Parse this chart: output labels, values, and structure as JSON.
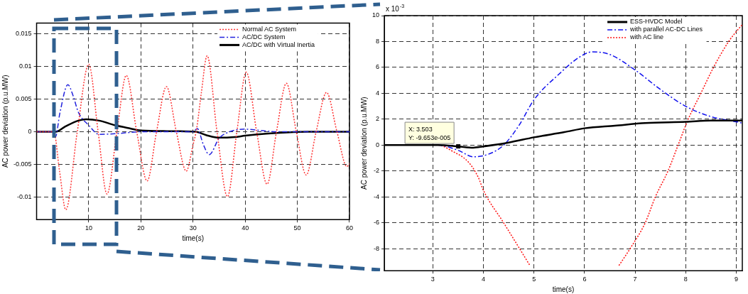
{
  "chart_data": [
    {
      "type": "line",
      "xlabel": "time(s)",
      "ylabel": "AC power deviation (p.u.MW)",
      "xlim": [
        0,
        60
      ],
      "ylim": [
        -0.0134,
        0.0166
      ],
      "xticks": [
        10,
        20,
        30,
        40,
        50,
        60
      ],
      "yticks": [
        -0.01,
        -0.005,
        0,
        0.005,
        0.01,
        0.015
      ],
      "grid": true,
      "legend": "top right",
      "series": [
        {
          "name": "Normal AC System",
          "color": "#ff3333",
          "line_style": "dotted",
          "x": [
            0,
            3.3,
            4.4,
            5.6,
            7.8,
            10,
            11.8,
            13.5,
            15.4,
            17.2,
            19.2,
            21.2,
            23,
            24.9,
            26.8,
            28.7,
            30,
            30.7,
            31.6,
            32.7,
            34.6,
            36.6,
            38.4,
            40.2,
            42.2,
            44.2,
            46,
            47.9,
            49.8,
            51.7,
            53.6,
            55.6,
            57.6,
            59.5,
            60
          ],
          "values": [
            0,
            0,
            -0.006,
            -0.0119,
            0,
            0.0103,
            0,
            -0.0095,
            0,
            0.0086,
            0,
            -0.0075,
            0,
            0.0069,
            0,
            -0.006,
            -0.002,
            0.0005,
            0.006,
            0.0116,
            0,
            -0.0099,
            0,
            0.0091,
            0,
            -0.008,
            0,
            0.0074,
            0,
            -0.0066,
            0,
            0.006,
            0,
            -0.0053,
            -0.0049
          ]
        },
        {
          "name": "AC/DC System",
          "color": "#2222dd",
          "line_style": "dashed",
          "x": [
            0,
            3.3,
            3.6,
            4.5,
            6,
            7,
            8,
            10,
            12,
            15,
            20,
            30,
            30.8,
            32,
            33.1,
            35,
            37,
            40,
            43,
            46,
            60
          ],
          "values": [
            0,
            0,
            -0.0008,
            0.003,
            0.0072,
            0.0055,
            0.003,
            0.001,
            -0.0004,
            -0.0003,
            0,
            0,
            0.0005,
            -0.002,
            -0.0035,
            -0.001,
            0,
            0.0004,
            0.0002,
            0,
            0
          ]
        },
        {
          "name": "AC/DC with Virtual Inertia",
          "color": "#000000",
          "line_style": "solid",
          "x": [
            0,
            3.7,
            5.5,
            8,
            9.5,
            12,
            15,
            18,
            20,
            25,
            30.5,
            32.5,
            35,
            38,
            40,
            44,
            48,
            52,
            60
          ],
          "values": [
            0,
            0,
            0.0008,
            0.0017,
            0.0019,
            0.0017,
            0.001,
            0.0005,
            0.0002,
            0.0001,
            0,
            -0.0005,
            -0.0009,
            -0.0008,
            -0.0006,
            -0.0003,
            -0.0001,
            0,
            0
          ]
        }
      ]
    },
    {
      "type": "line",
      "xlabel": "time(s)",
      "ylabel": "AC power deviation (p.u.MW)",
      "xlim": [
        2.04,
        9.12
      ],
      "ylim": [
        -9.7,
        10
      ],
      "xticks": [
        3,
        4,
        5,
        6,
        7,
        8,
        9
      ],
      "yticks": [
        -8,
        -6,
        -4,
        -2,
        0,
        2,
        4,
        6,
        8,
        10
      ],
      "grid": true,
      "legend": "top right",
      "annotations": [
        "x 10$^{-3}$",
        {
          "text": "X: 3.503\nY: -9.653e-005",
          "x": 3.503,
          "y": -0.09653
        }
      ],
      "series": [
        {
          "name": "ESS-HVDC Model",
          "color": "#000000",
          "line_style": "solid",
          "x": [
            2.04,
            3.1,
            3.5,
            3.8,
            4,
            4.5,
            5,
            5.6,
            6,
            6.6,
            7.2,
            8,
            8.5,
            9.12
          ],
          "values": [
            0,
            0,
            -0.1,
            -0.2,
            -0.1,
            0.2,
            0.6,
            1,
            1.3,
            1.5,
            1.7,
            1.8,
            1.9,
            1.9
          ]
        },
        {
          "name": "with parallel AC-DC Lines",
          "color": "#1111ee",
          "line_style": "dashed",
          "x": [
            2.04,
            3.1,
            3.5,
            3.8,
            4.1,
            4.4,
            4.7,
            5,
            5.5,
            5.9,
            6.15,
            6.5,
            7,
            7.5,
            8,
            8.5,
            9,
            9.12
          ],
          "values": [
            0,
            0,
            -0.4,
            -0.9,
            -0.7,
            0,
            1.5,
            3.5,
            5.5,
            6.8,
            7.2,
            7,
            5.8,
            4.3,
            3,
            2.2,
            1.8,
            1.7
          ]
        },
        {
          "name": "with AC line",
          "color": "#ff1111",
          "line_style": "dotted",
          "x": [
            2.04,
            3.1,
            3.4,
            3.7,
            3.9,
            4,
            4.4,
            4.92,
            5.8,
            6.68,
            6.9,
            7.2,
            7.4,
            7.65,
            7.85,
            8.05,
            8.3,
            8.55,
            8.85,
            9.05,
            9.12
          ],
          "values": [
            0,
            0,
            -0.5,
            -1.3,
            -2.5,
            -3.5,
            -6,
            -9.3,
            null,
            -9.3,
            -8,
            -6,
            -4,
            -2,
            0,
            2,
            4,
            6,
            8,
            9,
            9.3
          ]
        }
      ]
    }
  ]
}
